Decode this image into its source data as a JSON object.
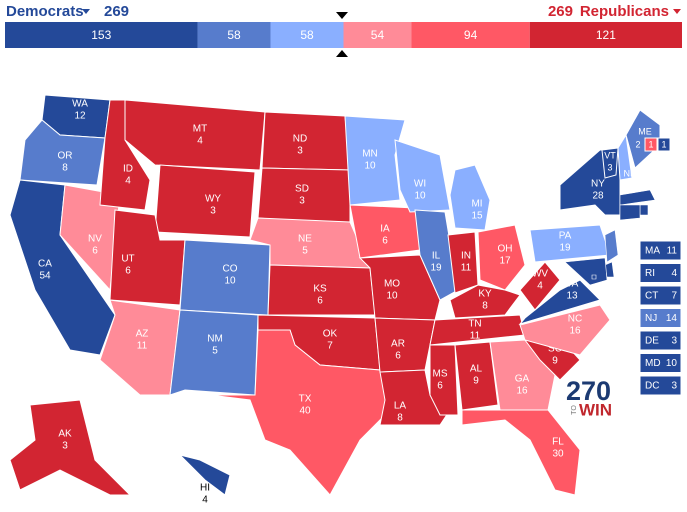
{
  "header": {
    "left_party": "Democrats",
    "left_total": 269,
    "right_total": 269,
    "right_party": "Republicans"
  },
  "bar": {
    "segments": [
      {
        "value": 153,
        "color": "#244999"
      },
      {
        "value": 58,
        "color": "#577ccc"
      },
      {
        "value": 58,
        "color": "#8aafff"
      },
      {
        "value": 54,
        "color": "#ff8b98"
      },
      {
        "value": 94,
        "color": "#ff5865"
      },
      {
        "value": 121,
        "color": "#d22532"
      }
    ]
  },
  "states": [
    {
      "abbr": "WA",
      "votes": 12,
      "color": "#244999"
    },
    {
      "abbr": "OR",
      "votes": 8,
      "color": "#577ccc"
    },
    {
      "abbr": "CA",
      "votes": 54,
      "color": "#244999"
    },
    {
      "abbr": "NV",
      "votes": 6,
      "color": "#ff8b98"
    },
    {
      "abbr": "ID",
      "votes": 4,
      "color": "#d22532"
    },
    {
      "abbr": "MT",
      "votes": 4,
      "color": "#d22532"
    },
    {
      "abbr": "WY",
      "votes": 3,
      "color": "#d22532"
    },
    {
      "abbr": "UT",
      "votes": 6,
      "color": "#d22532"
    },
    {
      "abbr": "CO",
      "votes": 10,
      "color": "#577ccc"
    },
    {
      "abbr": "AZ",
      "votes": 11,
      "color": "#ff8b98"
    },
    {
      "abbr": "NM",
      "votes": 5,
      "color": "#577ccc"
    },
    {
      "abbr": "ND",
      "votes": 3,
      "color": "#d22532"
    },
    {
      "abbr": "SD",
      "votes": 3,
      "color": "#d22532"
    },
    {
      "abbr": "NE",
      "votes": 5,
      "color": "#ff8b98"
    },
    {
      "abbr": "KS",
      "votes": 6,
      "color": "#d22532"
    },
    {
      "abbr": "OK",
      "votes": 7,
      "color": "#d22532"
    },
    {
      "abbr": "TX",
      "votes": 40,
      "color": "#ff5865"
    },
    {
      "abbr": "MN",
      "votes": 10,
      "color": "#8aafff"
    },
    {
      "abbr": "IA",
      "votes": 6,
      "color": "#ff5865"
    },
    {
      "abbr": "MO",
      "votes": 10,
      "color": "#d22532"
    },
    {
      "abbr": "AR",
      "votes": 6,
      "color": "#d22532"
    },
    {
      "abbr": "LA",
      "votes": 8,
      "color": "#d22532"
    },
    {
      "abbr": "WI",
      "votes": 10,
      "color": "#8aafff"
    },
    {
      "abbr": "IL",
      "votes": 19,
      "color": "#577ccc"
    },
    {
      "abbr": "MI",
      "votes": 15,
      "color": "#8aafff"
    },
    {
      "abbr": "IN",
      "votes": 11,
      "color": "#d22532"
    },
    {
      "abbr": "OH",
      "votes": 17,
      "color": "#ff5865"
    },
    {
      "abbr": "KY",
      "votes": 8,
      "color": "#d22532"
    },
    {
      "abbr": "TN",
      "votes": 11,
      "color": "#d22532"
    },
    {
      "abbr": "MS",
      "votes": 6,
      "color": "#d22532"
    },
    {
      "abbr": "AL",
      "votes": 9,
      "color": "#d22532"
    },
    {
      "abbr": "GA",
      "votes": 16,
      "color": "#ff8b98"
    },
    {
      "abbr": "FL",
      "votes": 30,
      "color": "#ff5865"
    },
    {
      "abbr": "SC",
      "votes": 9,
      "color": "#d22532"
    },
    {
      "abbr": "NC",
      "votes": 16,
      "color": "#ff8b98"
    },
    {
      "abbr": "VA",
      "votes": 13,
      "color": "#244999"
    },
    {
      "abbr": "WV",
      "votes": 4,
      "color": "#d22532"
    },
    {
      "abbr": "PA",
      "votes": 19,
      "color": "#8aafff"
    },
    {
      "abbr": "NY",
      "votes": 28,
      "color": "#244999"
    },
    {
      "abbr": "VT",
      "votes": 3,
      "color": "#244999"
    },
    {
      "abbr": "NH",
      "votes": 4,
      "color": "#8aafff"
    },
    {
      "abbr": "ME",
      "votes": 2,
      "color": "#577ccc"
    },
    {
      "abbr": "AK",
      "votes": 3,
      "color": "#d22532"
    },
    {
      "abbr": "HI",
      "votes": 4,
      "color": "#244999"
    }
  ],
  "districts": [
    {
      "votes": 1,
      "color": "#ff5865"
    },
    {
      "votes": 1,
      "color": "#244999"
    }
  ],
  "small_states": [
    {
      "abbr": "MA",
      "votes": 11,
      "color": "#244999"
    },
    {
      "abbr": "RI",
      "votes": 4,
      "color": "#244999"
    },
    {
      "abbr": "CT",
      "votes": 7,
      "color": "#244999"
    },
    {
      "abbr": "NJ",
      "votes": 14,
      "color": "#577ccc"
    },
    {
      "abbr": "DE",
      "votes": 3,
      "color": "#244999"
    },
    {
      "abbr": "MD",
      "votes": 10,
      "color": "#244999"
    },
    {
      "abbr": "DC",
      "votes": 3,
      "color": "#244999"
    }
  ],
  "logo": {
    "number": "270",
    "small": "TO",
    "word": "WIN"
  }
}
